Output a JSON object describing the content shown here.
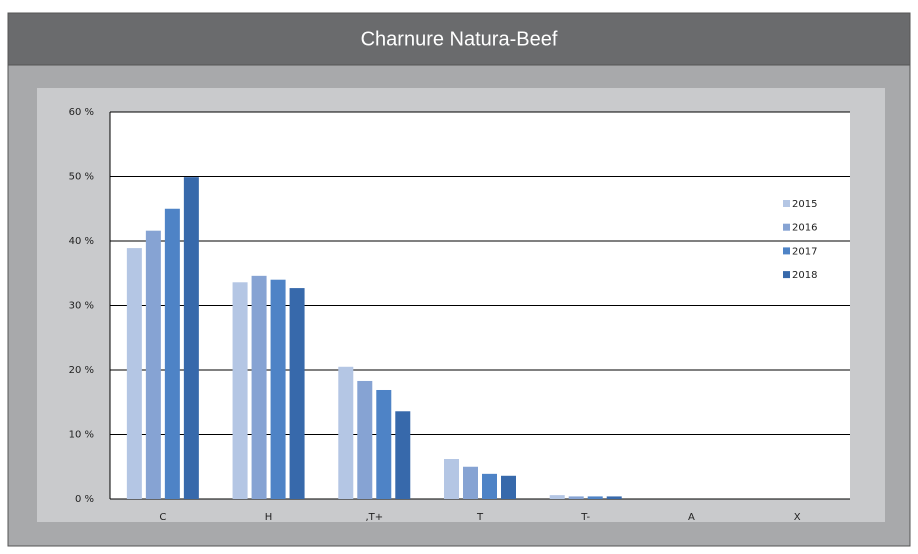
{
  "chart_data": {
    "type": "bar",
    "title": "Charnure Natura-Beef",
    "categories": [
      "C",
      "H",
      ",T+",
      "T",
      "T-",
      "A",
      "X"
    ],
    "series": [
      {
        "name": "2015",
        "color": "#b4c6e4",
        "values": [
          38.9,
          33.6,
          20.5,
          6.2,
          0.6,
          0,
          0
        ]
      },
      {
        "name": "2016",
        "color": "#86a3d3",
        "values": [
          41.6,
          34.6,
          18.3,
          5.0,
          0.4,
          0,
          0
        ]
      },
      {
        "name": "2017",
        "color": "#4e83c6",
        "values": [
          45.0,
          34.0,
          16.9,
          3.9,
          0.4,
          0,
          0
        ]
      },
      {
        "name": "2018",
        "color": "#3769ab",
        "values": [
          49.9,
          32.7,
          13.6,
          3.6,
          0.4,
          0,
          0
        ]
      }
    ],
    "ylim": [
      0,
      60
    ],
    "yticks": [
      {
        "value": 0,
        "label": "0 %"
      },
      {
        "value": 10,
        "label": "10 %"
      },
      {
        "value": 20,
        "label": "20 %"
      },
      {
        "value": 30,
        "label": "30 %"
      },
      {
        "value": 40,
        "label": "40 %"
      },
      {
        "value": 50,
        "label": "50 %"
      },
      {
        "value": 60,
        "label": "60 %"
      }
    ],
    "grid": true,
    "legend": "right"
  }
}
